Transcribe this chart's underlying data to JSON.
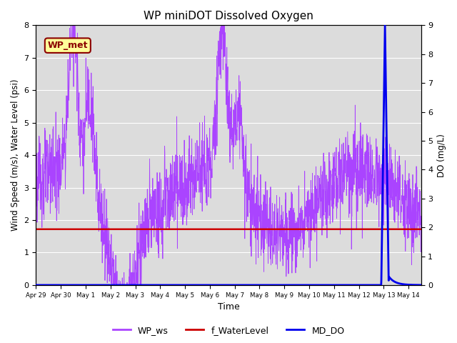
{
  "title": "WP miniDOT Dissolved Oxygen",
  "ylabel_left": "Wind Speed (m/s), Water Level (psi)",
  "ylabel_right": "DO (mg/L)",
  "xlabel": "Time",
  "ylim_left": [
    0.0,
    8.0
  ],
  "ylim_right": [
    0.0,
    9.0
  ],
  "yticks_left": [
    0.0,
    1.0,
    2.0,
    3.0,
    4.0,
    5.0,
    6.0,
    7.0,
    8.0
  ],
  "yticks_right": [
    0.0,
    1.0,
    2.0,
    3.0,
    4.0,
    5.0,
    6.0,
    7.0,
    8.0,
    9.0
  ],
  "legend_label": "WP_met",
  "legend_bg": "#FFFF99",
  "legend_edge": "#8B0000",
  "series_labels": [
    "WP_ws",
    "f_WaterLevel",
    "MD_DO"
  ],
  "series_colors": [
    "#AA44FF",
    "#CC0000",
    "#0000EE"
  ],
  "background_color": "#DCDCDC",
  "water_level_value": 1.72,
  "xlim": [
    0,
    15.5
  ],
  "xtick_labels": [
    "Apr 29",
    "Apr 30",
    "May 1",
    "May 2",
    "May 3",
    "May 4",
    "May 5",
    "May 6",
    "May 7",
    "May 8",
    "May 9",
    "May 10",
    "May 11",
    "May 12",
    "May 13",
    "May 14"
  ],
  "xtick_positions": [
    0,
    1,
    2,
    3,
    4,
    5,
    6,
    7,
    8,
    9,
    10,
    11,
    12,
    13,
    14,
    15
  ],
  "do_spike_start": 13.9,
  "do_spike_peak": 14.05,
  "do_spike_end": 14.2,
  "do_post_value": 0.3,
  "do_peak_value": 9.0
}
